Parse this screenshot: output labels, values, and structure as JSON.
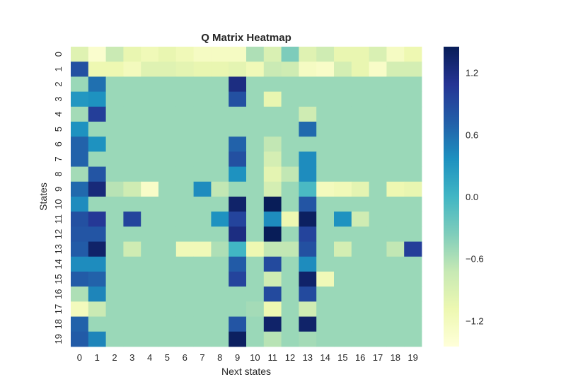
{
  "chart_data": {
    "type": "heatmap",
    "title": "Q Matrix Heatmap",
    "xlabel": "Next states",
    "ylabel": "States",
    "x_categories": [
      "0",
      "1",
      "2",
      "3",
      "4",
      "5",
      "6",
      "7",
      "8",
      "9",
      "10",
      "11",
      "12",
      "13",
      "14",
      "15",
      "16",
      "17",
      "18",
      "19"
    ],
    "y_categories": [
      "0",
      "1",
      "2",
      "3",
      "4",
      "5",
      "6",
      "7",
      "8",
      "9",
      "10",
      "11",
      "12",
      "13",
      "14",
      "15",
      "16",
      "17",
      "18",
      "19"
    ],
    "colormap": "YlGnBu",
    "vmin": -1.45,
    "vmax": 1.45,
    "colorbar_ticks": [
      1.2,
      0.6,
      0.0,
      -0.6,
      -1.2
    ],
    "colorbar_tick_labels": [
      "1.2",
      "0.6",
      "0.0",
      "−0.6",
      "−1.2"
    ],
    "grid": false,
    "values": [
      [
        -0.95,
        -1.35,
        -0.75,
        -1.05,
        -1.15,
        -1.05,
        -1.15,
        -1.25,
        -1.25,
        -1.25,
        -0.6,
        -0.9,
        -0.35,
        -0.95,
        -0.8,
        -1.05,
        -1.05,
        -0.9,
        -1.25,
        -1.1
      ],
      [
        0.85,
        -1.1,
        -1.1,
        -1.2,
        -0.95,
        -0.95,
        -1.0,
        -1.05,
        -1.05,
        -1.0,
        -1.15,
        -0.75,
        -0.8,
        -1.25,
        -1.3,
        -0.85,
        -1.05,
        -1.3,
        -0.85,
        -0.85
      ],
      [
        -0.5,
        0.6,
        -0.5,
        -0.5,
        -0.5,
        -0.5,
        -0.5,
        -0.5,
        -0.5,
        1.2,
        -0.5,
        -0.5,
        -0.5,
        -0.5,
        -0.5,
        -0.5,
        -0.5,
        -0.5,
        -0.5,
        -0.5
      ],
      [
        0.3,
        0.35,
        -0.5,
        -0.5,
        -0.5,
        -0.5,
        -0.5,
        -0.5,
        -0.5,
        0.85,
        -0.5,
        -1.05,
        -0.5,
        -0.5,
        -0.5,
        -0.5,
        -0.5,
        -0.5,
        -0.5,
        -0.5
      ],
      [
        -0.55,
        1.0,
        -0.5,
        -0.5,
        -0.5,
        -0.5,
        -0.5,
        -0.5,
        -0.5,
        -0.5,
        -0.5,
        -0.5,
        -0.5,
        -0.8,
        -0.5,
        -0.5,
        -0.5,
        -0.5,
        -0.5,
        -0.5
      ],
      [
        0.35,
        -0.5,
        -0.5,
        -0.5,
        -0.5,
        -0.5,
        -0.5,
        -0.5,
        -0.5,
        -0.5,
        -0.5,
        -0.5,
        -0.5,
        0.65,
        -0.5,
        -0.5,
        -0.5,
        -0.5,
        -0.5,
        -0.5
      ],
      [
        0.7,
        0.35,
        -0.5,
        -0.5,
        -0.5,
        -0.5,
        -0.5,
        -0.5,
        -0.5,
        0.7,
        -0.5,
        -0.7,
        -0.5,
        -0.5,
        -0.5,
        -0.5,
        -0.5,
        -0.5,
        -0.5,
        -0.5
      ],
      [
        0.7,
        -0.5,
        -0.5,
        -0.5,
        -0.5,
        -0.5,
        -0.5,
        -0.5,
        -0.5,
        0.85,
        -0.5,
        -0.85,
        -0.5,
        0.4,
        -0.5,
        -0.5,
        -0.5,
        -0.5,
        -0.5,
        -0.5
      ],
      [
        -0.55,
        0.8,
        -0.5,
        -0.5,
        -0.5,
        -0.5,
        -0.5,
        -0.5,
        -0.5,
        0.35,
        -0.5,
        -1.0,
        -0.7,
        0.4,
        -0.5,
        -0.5,
        -0.5,
        -0.5,
        -0.5,
        -0.5
      ],
      [
        0.65,
        1.25,
        -0.65,
        -0.8,
        -1.3,
        -0.5,
        -0.5,
        0.4,
        -0.7,
        -0.5,
        -0.5,
        -0.85,
        -0.5,
        -0.05,
        -1.2,
        -1.15,
        -1.0,
        -0.5,
        -1.1,
        -1.05
      ],
      [
        0.4,
        -0.5,
        -0.5,
        -0.5,
        -0.5,
        -0.5,
        -0.5,
        -0.5,
        -0.5,
        1.35,
        -0.5,
        1.45,
        -0.5,
        0.8,
        -0.5,
        -0.5,
        -0.5,
        -0.5,
        -0.5,
        -0.5
      ],
      [
        0.85,
        1.05,
        -0.5,
        0.95,
        -0.5,
        -0.5,
        -0.5,
        -0.5,
        0.35,
        0.95,
        -0.5,
        0.4,
        -1.1,
        1.4,
        -0.5,
        0.35,
        -0.8,
        -0.5,
        -0.5,
        -0.5
      ],
      [
        0.8,
        0.8,
        -0.5,
        -0.5,
        -0.5,
        -0.5,
        -0.5,
        -0.5,
        -0.5,
        1.2,
        -0.5,
        1.5,
        -0.5,
        0.95,
        -0.5,
        -0.5,
        -0.5,
        -0.5,
        -0.5,
        -0.5
      ],
      [
        0.75,
        1.35,
        -0.5,
        -0.8,
        -0.5,
        -0.5,
        -1.15,
        -1.15,
        -0.6,
        0.0,
        -1.1,
        -0.7,
        -0.7,
        0.85,
        -0.5,
        -0.85,
        -0.5,
        -0.5,
        -0.7,
        1.0
      ],
      [
        0.4,
        0.4,
        -0.5,
        -0.5,
        -0.5,
        -0.5,
        -0.5,
        -0.5,
        -0.5,
        0.75,
        -0.5,
        0.9,
        -0.5,
        0.4,
        -0.5,
        -0.5,
        -0.5,
        -0.5,
        -0.5,
        -0.5
      ],
      [
        0.75,
        0.7,
        -0.5,
        -0.5,
        -0.5,
        -0.5,
        -0.5,
        -0.5,
        -0.5,
        0.95,
        -0.5,
        -0.8,
        -0.5,
        1.35,
        -1.15,
        -0.5,
        -0.5,
        -0.5,
        -0.5,
        -0.5
      ],
      [
        -0.6,
        0.45,
        -0.5,
        -0.5,
        -0.5,
        -0.5,
        -0.5,
        -0.5,
        -0.5,
        -0.5,
        -0.5,
        0.9,
        -0.5,
        0.9,
        -0.5,
        -0.5,
        -0.5,
        -0.5,
        -0.5,
        -0.5
      ],
      [
        -1.2,
        -0.75,
        -0.5,
        -0.5,
        -0.5,
        -0.5,
        -0.5,
        -0.5,
        -0.5,
        -0.5,
        -0.55,
        -1.1,
        -0.5,
        -0.8,
        -0.5,
        -0.5,
        -0.5,
        -0.5,
        -0.5,
        -0.5
      ],
      [
        0.7,
        -0.5,
        -0.5,
        -0.5,
        -0.5,
        -0.5,
        -0.5,
        -0.5,
        -0.5,
        0.8,
        -0.5,
        1.35,
        -0.5,
        1.35,
        -0.5,
        -0.5,
        -0.5,
        -0.5,
        -0.5,
        -0.5
      ],
      [
        0.75,
        0.45,
        -0.5,
        -0.5,
        -0.5,
        -0.5,
        -0.5,
        -0.5,
        -0.5,
        1.4,
        -0.5,
        -0.65,
        -0.5,
        -0.55,
        -0.5,
        -0.5,
        -0.5,
        -0.5,
        -0.5,
        -0.5
      ]
    ]
  }
}
